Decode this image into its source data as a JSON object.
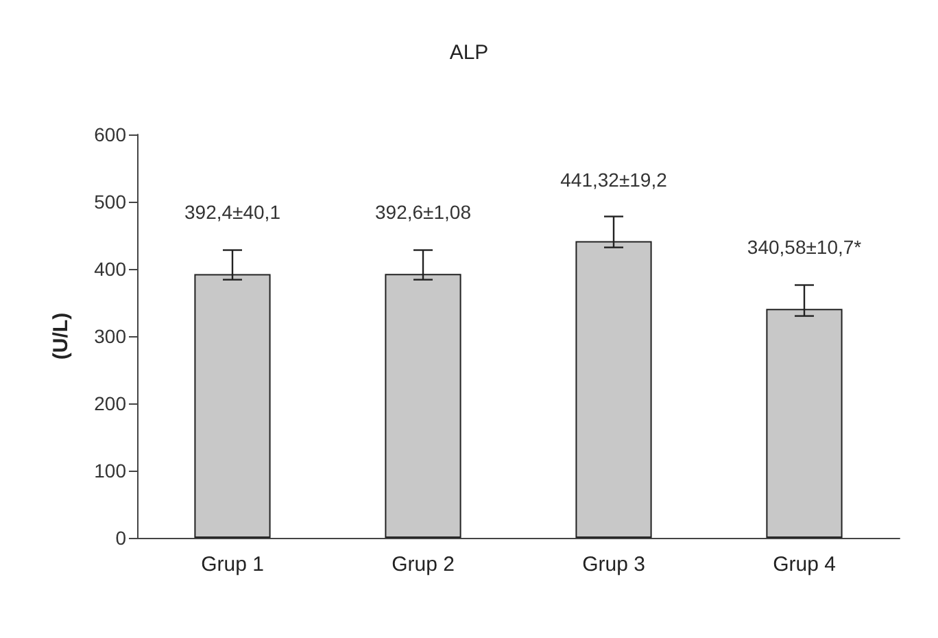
{
  "chart_data": {
    "type": "bar",
    "title": "ALP",
    "ylabel": "(U/L)",
    "categories": [
      "Grup 1",
      "Grup 2",
      "Grup 3",
      "Grup 4"
    ],
    "values": [
      392.4,
      392.6,
      441.32,
      340.58
    ],
    "errors": [
      [
        384,
        428
      ],
      [
        384,
        428
      ],
      [
        432,
        478
      ],
      [
        330,
        376
      ]
    ],
    "value_labels": [
      "392,4±40,1",
      "392,6±1,08",
      "441,32±19,2",
      "340,58±10,7*"
    ],
    "color": "#c8c8c8",
    "ylim": [
      0,
      600
    ],
    "yticks": [
      0,
      100,
      200,
      300,
      400,
      500,
      600
    ],
    "grid": false
  }
}
